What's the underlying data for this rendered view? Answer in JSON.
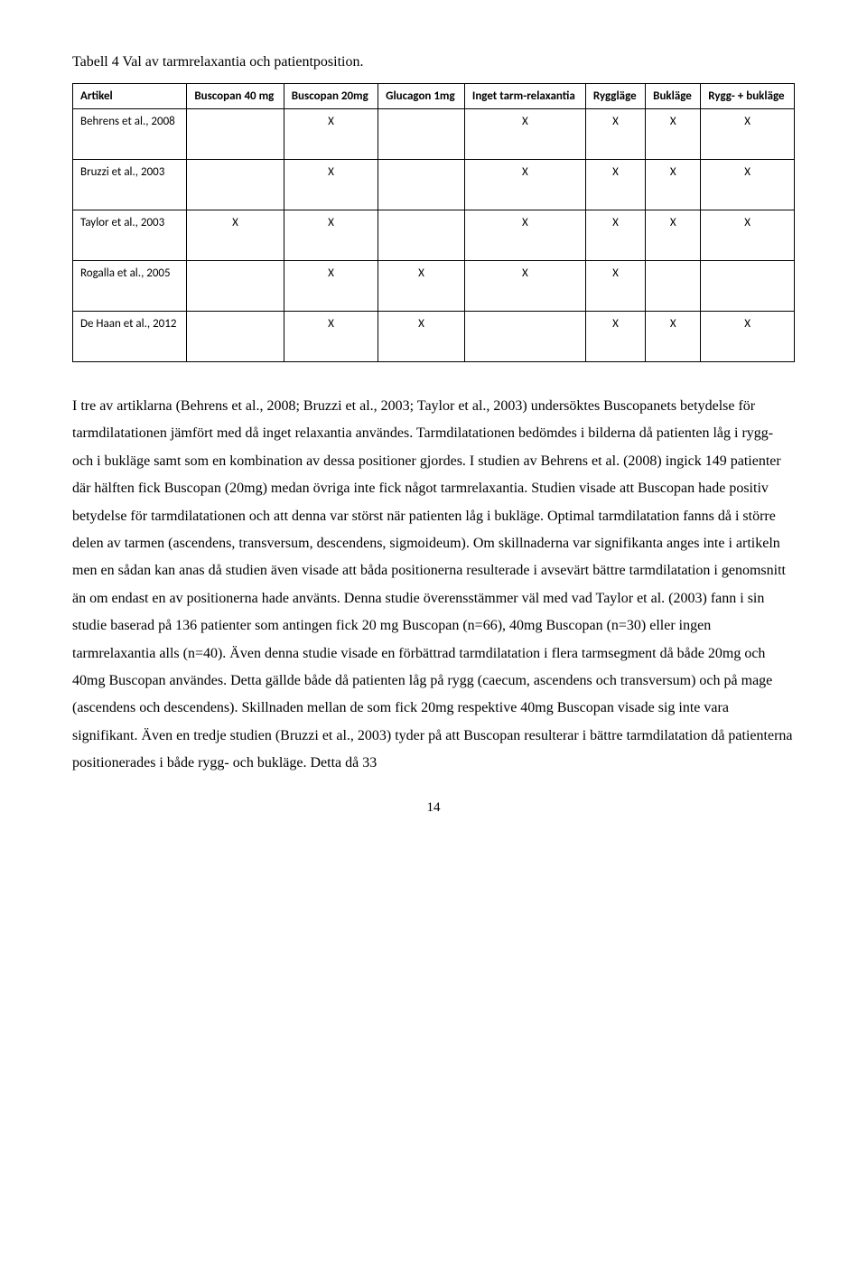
{
  "table": {
    "title": "Tabell 4 Val av tarmrelaxantia och patientposition.",
    "columns": [
      "Artikel",
      "Buscopan 40 mg",
      "Buscopan 20mg",
      "Glucagon 1mg",
      "Inget tarm-relaxantia",
      "Ryggläge",
      "Bukläge",
      "Rygg- + bukläge"
    ],
    "rows": [
      {
        "label": "Behrens et al., 2008",
        "cells": [
          "",
          "X",
          "",
          "X",
          "X",
          "X",
          "X"
        ]
      },
      {
        "label": "Bruzzi et al., 2003",
        "cells": [
          "",
          "X",
          "",
          "X",
          "X",
          "X",
          "X"
        ]
      },
      {
        "label": "Taylor et al., 2003",
        "cells": [
          "X",
          "X",
          "",
          "X",
          "X",
          "X",
          "X"
        ]
      },
      {
        "label": "Rogalla et al., 2005",
        "cells": [
          "",
          "X",
          "X",
          "X",
          "X",
          "",
          ""
        ]
      },
      {
        "label": "De Haan et al., 2012",
        "cells": [
          "",
          "X",
          "X",
          "",
          "X",
          "X",
          "X"
        ]
      }
    ]
  },
  "paragraph": "I tre av artiklarna (Behrens et al., 2008; Bruzzi et al., 2003; Taylor et al., 2003) undersöktes Buscopanets betydelse för tarmdilatationen jämfört med då inget relaxantia användes. Tarmdilatationen bedömdes i bilderna då patienten låg i rygg- och i bukläge samt som en kombination av dessa positioner gjordes. I studien av Behrens et al. (2008) ingick 149 patienter där hälften fick Buscopan (20mg) medan övriga inte fick något tarmrelaxantia. Studien visade att Buscopan hade positiv betydelse för tarmdilatationen och att denna var störst när patienten låg i bukläge. Optimal tarmdilatation fanns då i större delen av tarmen (ascendens, transversum, descendens, sigmoideum). Om skillnaderna var signifikanta anges inte i artikeln men en sådan kan anas då studien även visade att båda positionerna resulterade i avsevärt bättre tarmdilatation i genomsnitt än om endast en av positionerna hade använts. Denna studie överensstämmer väl med vad Taylor et al. (2003) fann i sin studie baserad på 136 patienter som antingen fick 20 mg Buscopan (n=66), 40mg Buscopan (n=30) eller ingen tarmrelaxantia alls (n=40). Även denna studie visade en förbättrad tarmdilatation i flera tarmsegment då både 20mg och 40mg Buscopan användes. Detta gällde både då patienten låg på rygg (caecum, ascendens och transversum) och på mage (ascendens och descendens). Skillnaden mellan de som fick 20mg respektive 40mg Buscopan visade sig inte vara signifikant. Även en tredje studien (Bruzzi et al., 2003) tyder på att Buscopan resulterar i bättre tarmdilatation då patienterna positionerades i både rygg- och bukläge. Detta då 33",
  "page_number": "14"
}
